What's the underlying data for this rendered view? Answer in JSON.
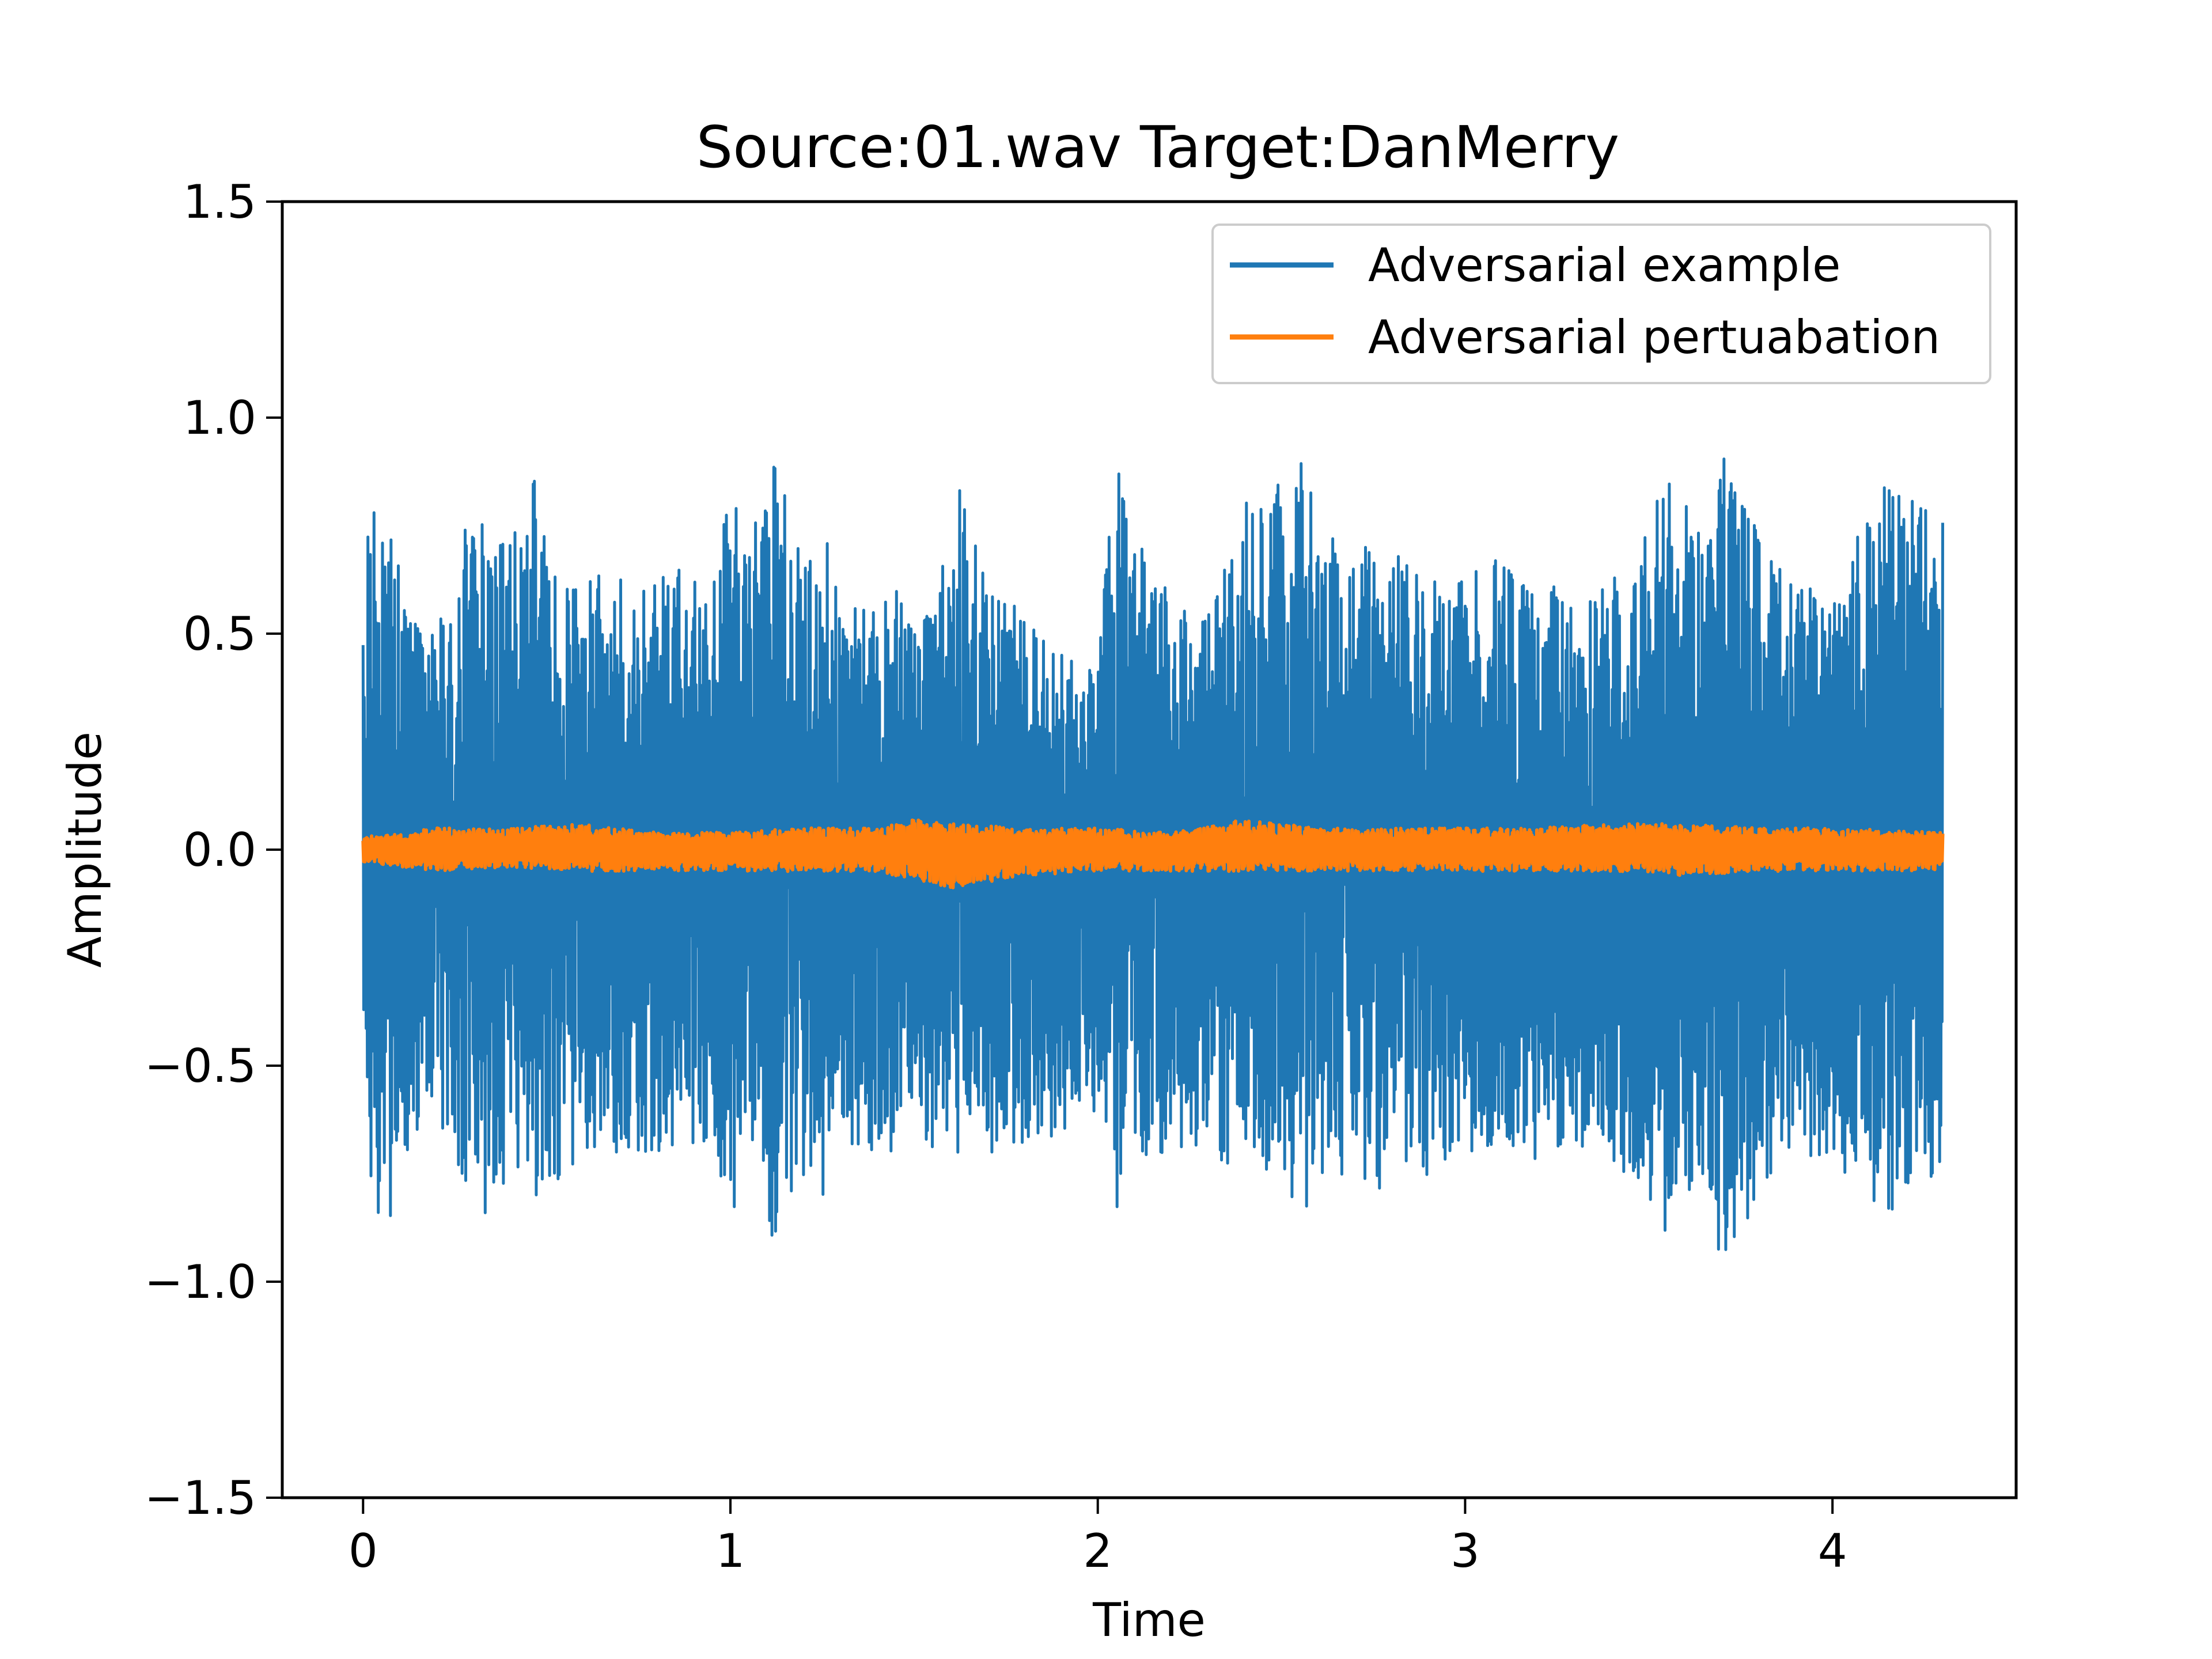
{
  "chart_data": {
    "type": "line",
    "title": "Source:01.wav Target:DanMerry",
    "xlabel": "Time",
    "ylabel": "Amplitude",
    "xlim": [
      -0.22,
      4.5
    ],
    "ylim": [
      -1.5,
      1.5
    ],
    "xticks": [
      0,
      1,
      2,
      3,
      4
    ],
    "yticks": [
      -1.5,
      -1.0,
      -0.5,
      0.0,
      0.5,
      1.0,
      1.5
    ],
    "xtick_labels": [
      "0",
      "1",
      "2",
      "3",
      "4"
    ],
    "ytick_labels": [
      "−1.5",
      "−1.0",
      "−0.5",
      "0.0",
      "0.5",
      "1.0",
      "1.5"
    ],
    "grid": false,
    "legend_position": "upper right",
    "duration": 4.3,
    "series": [
      {
        "name": "Adversarial example",
        "color": "#1f77b4",
        "envelope": {
          "t": [
            0.0,
            0.02,
            0.04,
            0.06,
            0.12,
            0.18,
            0.3,
            0.34,
            0.4,
            0.47,
            0.55,
            0.65,
            0.75,
            0.85,
            0.95,
            1.0,
            1.05,
            1.12,
            1.2,
            1.25,
            1.35,
            1.45,
            1.55,
            1.62,
            1.7,
            1.8,
            1.9,
            2.0,
            2.05,
            2.1,
            2.2,
            2.3,
            2.4,
            2.5,
            2.56,
            2.6,
            2.7,
            2.8,
            2.9,
            3.0,
            3.1,
            3.2,
            3.3,
            3.4,
            3.5,
            3.56,
            3.65,
            3.7,
            3.8,
            3.9,
            4.0,
            4.1,
            4.15,
            4.2,
            4.25,
            4.3
          ],
          "upper": [
            0.5,
            0.9,
            0.68,
            0.91,
            0.55,
            0.5,
            0.84,
            0.7,
            0.72,
            0.86,
            0.6,
            0.65,
            0.6,
            0.65,
            0.62,
            0.83,
            0.7,
            0.92,
            0.65,
            0.78,
            0.55,
            0.6,
            0.6,
            0.85,
            0.6,
            0.55,
            0.45,
            0.45,
            0.93,
            0.72,
            0.6,
            0.55,
            0.8,
            0.85,
            0.95,
            0.82,
            0.7,
            0.7,
            0.62,
            0.62,
            0.7,
            0.65,
            0.55,
            0.62,
            0.75,
            0.9,
            0.7,
            0.93,
            0.75,
            0.6,
            0.62,
            0.78,
            0.85,
            0.82,
            0.82,
            0.85
          ],
          "lower": [
            -0.5,
            -0.8,
            -0.88,
            -0.91,
            -0.7,
            -0.6,
            -0.8,
            -0.85,
            -0.78,
            -0.8,
            -0.75,
            -0.7,
            -0.7,
            -0.7,
            -0.68,
            -0.9,
            -0.65,
            -0.95,
            -0.75,
            -0.8,
            -0.7,
            -0.7,
            -0.72,
            -0.7,
            -0.7,
            -0.7,
            -0.65,
            -0.6,
            -0.9,
            -0.72,
            -0.7,
            -0.7,
            -0.75,
            -0.8,
            -0.9,
            -0.85,
            -0.75,
            -0.8,
            -0.75,
            -0.7,
            -0.7,
            -0.72,
            -0.7,
            -0.72,
            -0.8,
            -0.93,
            -0.75,
            -0.97,
            -0.8,
            -0.7,
            -0.72,
            -0.8,
            -0.85,
            -0.78,
            -0.8,
            -0.75
          ]
        }
      },
      {
        "name": "Adversarial pertuabation",
        "color": "#ff7f0e",
        "envelope": {
          "t": [
            0.0,
            0.2,
            0.4,
            0.6,
            0.8,
            1.0,
            1.2,
            1.4,
            1.5,
            1.6,
            1.8,
            2.0,
            2.2,
            2.4,
            2.6,
            2.8,
            3.0,
            3.2,
            3.4,
            3.6,
            3.8,
            4.0,
            4.3
          ],
          "upper": [
            0.03,
            0.05,
            0.05,
            0.06,
            0.04,
            0.04,
            0.05,
            0.05,
            0.07,
            0.06,
            0.05,
            0.05,
            0.04,
            0.07,
            0.05,
            0.05,
            0.05,
            0.05,
            0.06,
            0.06,
            0.05,
            0.05,
            0.04
          ],
          "lower": [
            -0.03,
            -0.05,
            -0.04,
            -0.05,
            -0.05,
            -0.05,
            -0.05,
            -0.05,
            -0.07,
            -0.09,
            -0.06,
            -0.05,
            -0.05,
            -0.05,
            -0.05,
            -0.05,
            -0.05,
            -0.05,
            -0.05,
            -0.06,
            -0.05,
            -0.05,
            -0.05
          ]
        }
      }
    ]
  }
}
